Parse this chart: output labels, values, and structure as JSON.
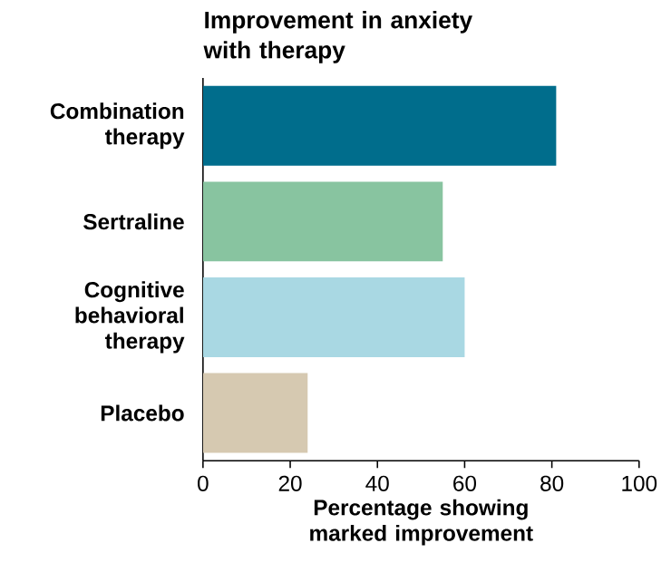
{
  "chart_data": {
    "type": "bar",
    "orientation": "horizontal",
    "title": "Improvement in anxiety with therapy",
    "xlabel": "Percentage showing marked improvement",
    "categories": [
      "Combination therapy",
      "Sertraline",
      "Cognitive behavioral therapy",
      "Placebo"
    ],
    "values": [
      81,
      55,
      60,
      24
    ],
    "colors": [
      "#006d8c",
      "#88c4a0",
      "#a9d8e3",
      "#d6c9b1"
    ],
    "xlim": [
      0,
      100
    ],
    "xticks": [
      0,
      20,
      40,
      60,
      80,
      100
    ]
  }
}
